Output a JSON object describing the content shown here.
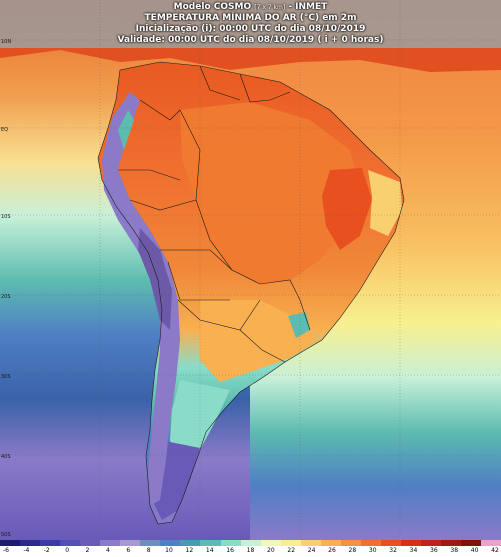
{
  "header": {
    "line1_prefix": "Modelo COSMO",
    "line1_res": "[7 x 7 km]",
    "line1_suffix": "- INMET",
    "line2": "TEMPERATURA MÍNIMA DO AR (°C) em 2m",
    "line3": "Inicialização (i): 00:00 UTC do dia 08/10/2019",
    "line4": "Validade: 00:00 UTC do dia 08/10/2019 ( i + 0 horas)"
  },
  "legend": {
    "ticks": [
      "-6",
      "-4",
      "-2",
      "0",
      "2",
      "4",
      "6",
      "8",
      "10",
      "12",
      "14",
      "16",
      "18",
      "20",
      "22",
      "24",
      "26",
      "28",
      "30",
      "32",
      "34",
      "36",
      "38",
      "40",
      "42"
    ],
    "colors": [
      "#1c1c6e",
      "#2a2a8c",
      "#3a3aa8",
      "#5050b8",
      "#6a5ab8",
      "#8a7ac8",
      "#a898d0",
      "#6c8ec0",
      "#4f7fc4",
      "#4a9ab0",
      "#5cbcb0",
      "#8adcc8",
      "#c8f0d8",
      "#f0f8c0",
      "#f8f090",
      "#f8d070",
      "#f8b050",
      "#f49040",
      "#f07030",
      "#e85020",
      "#d83018",
      "#c02020",
      "#a01818",
      "#801010",
      "#f0a0c8"
    ]
  },
  "grid": {
    "lat_labels": [
      "10N",
      "EQ",
      "10S",
      "20S",
      "30S",
      "40S",
      "50S"
    ]
  }
}
